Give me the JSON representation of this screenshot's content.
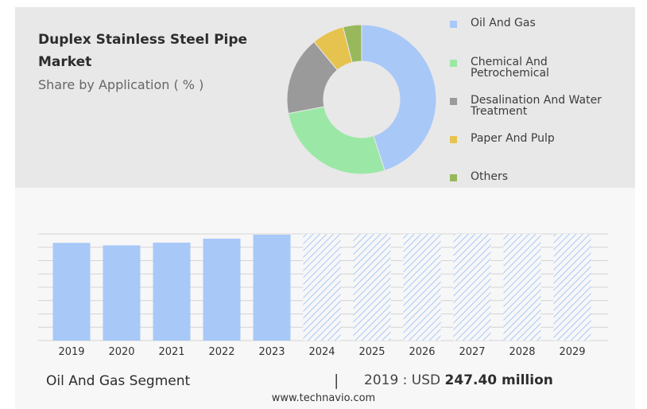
{
  "header": {
    "title": "Duplex Stainless Steel Pipe Market",
    "subtitle": "Share by Application ( % )"
  },
  "legend": [
    {
      "label": "Oil And Gas",
      "color": "#a8c8f8"
    },
    {
      "label": "Chemical And Petrochemical",
      "color": "#9be8a6"
    },
    {
      "label": "Desalination And Water Treatment",
      "color": "#9a9a9a"
    },
    {
      "label": "Paper And Pulp",
      "color": "#e6c34e"
    },
    {
      "label": "Others",
      "color": "#97b85c"
    }
  ],
  "chart_data": [
    {
      "type": "pie",
      "title": "Share by Application ( % )",
      "labels": [
        "Oil And Gas",
        "Chemical And Petrochemical",
        "Desalination And Water Treatment",
        "Paper And Pulp",
        "Others"
      ],
      "values": [
        45,
        27,
        17,
        7,
        4
      ],
      "colors": [
        "#a8c8f8",
        "#9be8a6",
        "#9a9a9a",
        "#e6c34e",
        "#97b85c"
      ],
      "donut": true
    },
    {
      "type": "bar",
      "categories": [
        "2019",
        "2020",
        "2021",
        "2022",
        "2023",
        "2024",
        "2025",
        "2026",
        "2027",
        "2028",
        "2029"
      ],
      "values": [
        247.4,
        241,
        248,
        258,
        268,
        null,
        null,
        null,
        null,
        null,
        null
      ],
      "forecast_categories": [
        "2024",
        "2025",
        "2026",
        "2027",
        "2028",
        "2029"
      ],
      "bar_color": "#a8c8f8",
      "forecast_pattern": "hatched",
      "ylim": [
        0,
        270
      ],
      "grid": true
    }
  ],
  "footer": {
    "segment": "Oil And Gas Segment",
    "separator": "|",
    "year_prefix": "2019 : USD",
    "value": "247.40 million",
    "url": "www.technavio.com"
  }
}
